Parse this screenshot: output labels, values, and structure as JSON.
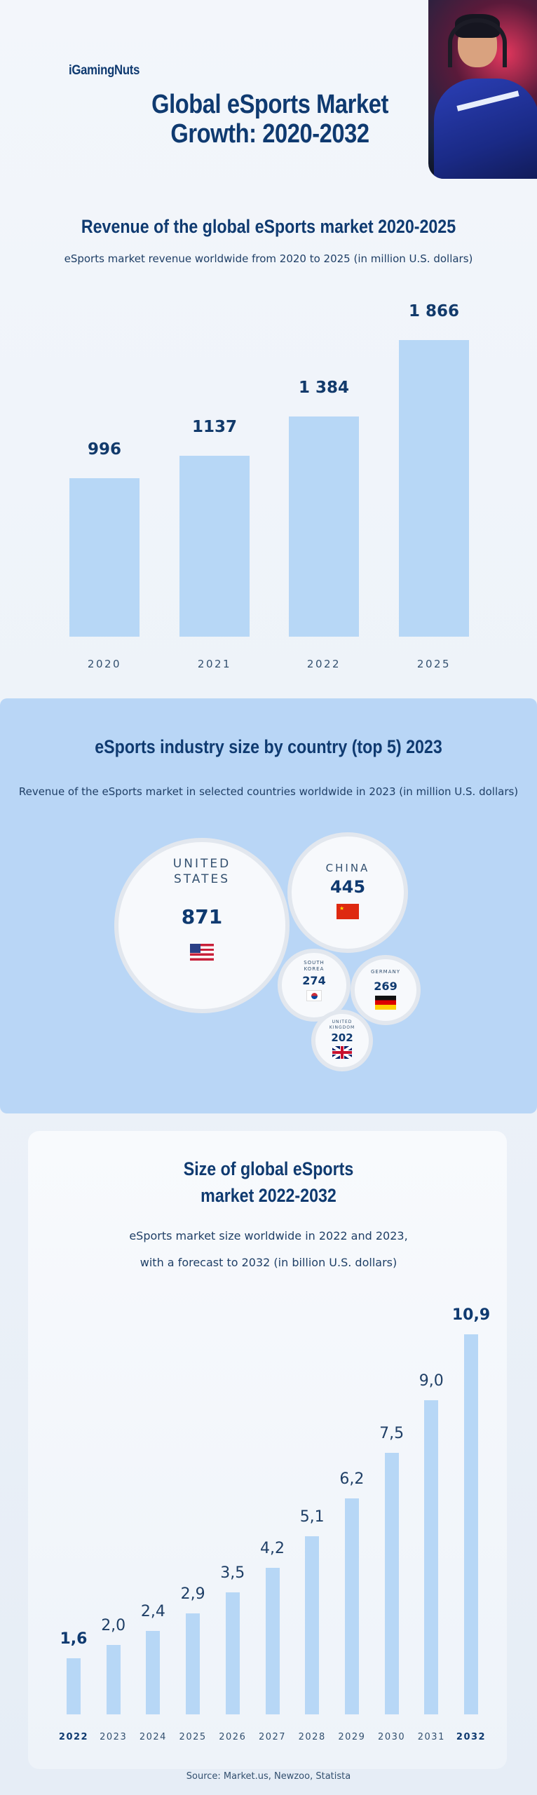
{
  "brand": "iGamingNuts",
  "main_title": "Global eSports Market Growth: 2020-2032",
  "hero_image": "gamer-with-headset-photo",
  "chart_data": [
    {
      "type": "bar",
      "title": "Revenue of the global eSports market 2020-2025",
      "subtitle": "eSports market revenue worldwide from 2020 to 2025 (in million U.S. dollars)",
      "categories": [
        "2020",
        "2021",
        "2022",
        "2025"
      ],
      "values": [
        996,
        1137,
        1384,
        1866
      ],
      "value_labels": [
        "996",
        "1137",
        "1 384",
        "1 866"
      ],
      "xlabel": "",
      "ylabel": "",
      "ylim": [
        0,
        1866
      ],
      "grid": false,
      "color": "#b7d7f6"
    },
    {
      "type": "bubble",
      "title": "eSports industry size by country (top 5) 2023",
      "subtitle": "Revenue of the eSports market in selected countries worldwide in 2023 (in million U.S. dollars)",
      "categories": [
        "UNITED STATES",
        "CHINA",
        "SOUTH KOREA",
        "GERMANY",
        "UNITED KINGDOM"
      ],
      "values": [
        871,
        445,
        274,
        269,
        202
      ],
      "flags": [
        "us-flag-icon",
        "china-flag-icon",
        "south-korea-flag-icon",
        "germany-flag-icon",
        "uk-flag-icon"
      ]
    },
    {
      "type": "bar",
      "title": "Size of global eSports market 2022-2032",
      "subtitle_line1": "eSports market size worldwide in 2022 and 2023,",
      "subtitle_line2": "with a forecast to 2032 (in billion U.S. dollars)",
      "categories": [
        "2022",
        "2023",
        "2024",
        "2025",
        "2026",
        "2027",
        "2028",
        "2029",
        "2030",
        "2031",
        "2032"
      ],
      "values": [
        1.6,
        2.0,
        2.4,
        2.9,
        3.5,
        4.2,
        5.1,
        6.2,
        7.5,
        9.0,
        10.9
      ],
      "value_labels": [
        "1,6",
        "2,0",
        "2,4",
        "2,9",
        "3,5",
        "4,2",
        "5,1",
        "6,2",
        "7,5",
        "9,0",
        "10,9"
      ],
      "highlighted": [
        "2022",
        "2032"
      ],
      "xlabel": "",
      "ylabel": "",
      "ylim": [
        0,
        10.9
      ],
      "grid": false,
      "color": "#b7d7f6"
    }
  ],
  "source": "Source: Market.us, Newzoo, Statista"
}
